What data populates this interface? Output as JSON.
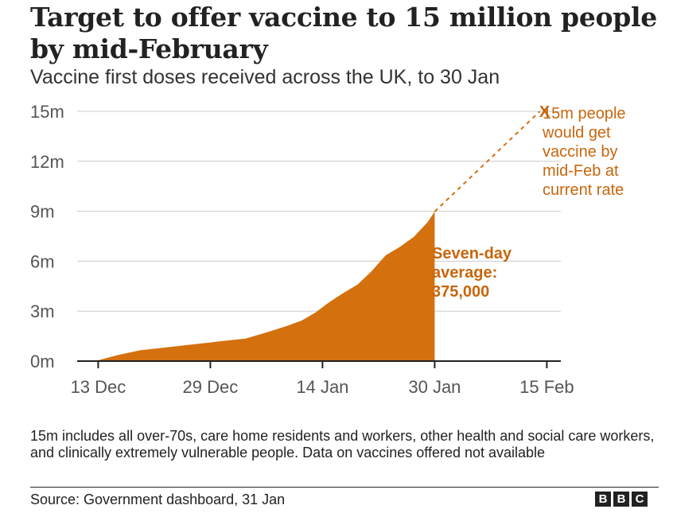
{
  "title": "Target to offer vaccine to 15 million people by mid-February",
  "subtitle": "Vaccine first doses received across the UK, to 30 Jan",
  "chart_data": {
    "type": "area",
    "title": "Target to offer vaccine to 15 million people by mid-February",
    "subtitle": "Vaccine first doses received across the UK, to 30 Jan",
    "xlabel": "",
    "ylabel": "",
    "x_unit": "days since 13 Dec",
    "xlim": [
      -3,
      66
    ],
    "ylim": [
      0,
      15
    ],
    "y_unit": "million people",
    "grid": true,
    "y_ticks": [
      {
        "value": 0,
        "label": "0m"
      },
      {
        "value": 3,
        "label": "3m"
      },
      {
        "value": 6,
        "label": "6m"
      },
      {
        "value": 9,
        "label": "9m"
      },
      {
        "value": 12,
        "label": "12m"
      },
      {
        "value": 15,
        "label": "15m"
      }
    ],
    "x_ticks": [
      {
        "value": 0,
        "label": "13 Dec"
      },
      {
        "value": 16,
        "label": "29 Dec"
      },
      {
        "value": 32,
        "label": "14 Jan"
      },
      {
        "value": 48,
        "label": "30 Jan"
      },
      {
        "value": 64,
        "label": "15 Feb"
      }
    ],
    "series": [
      {
        "name": "Vaccine first doses received",
        "color": "#d4700e",
        "x": [
          -1,
          0,
          3,
          6,
          9,
          12,
          15,
          18,
          21,
          24,
          27,
          29,
          31,
          33,
          35,
          37,
          39,
          41,
          43,
          45,
          47,
          48
        ],
        "y": [
          0,
          0.05,
          0.38,
          0.65,
          0.79,
          0.93,
          1.07,
          1.22,
          1.35,
          1.72,
          2.12,
          2.43,
          2.92,
          3.55,
          4.1,
          4.6,
          5.4,
          6.35,
          6.85,
          7.45,
          8.35,
          8.98
        ]
      },
      {
        "name": "Projection at current rate",
        "style": "dashed",
        "color": "#d4700e",
        "x": [
          48,
          63
        ],
        "y": [
          8.98,
          15
        ]
      }
    ],
    "annotations": [
      {
        "label": "Seven-day average:",
        "value": "375,000"
      },
      {
        "marker": "X",
        "label": "15m people would get vaccine by mid-Feb at current rate",
        "x": 63,
        "y": 15
      }
    ]
  },
  "annotations": {
    "average_line1": "Seven-day",
    "average_line2": "average:",
    "average_value": "375,000",
    "target_marker": "X",
    "target_lines": [
      "15m people",
      "would get",
      "vaccine by",
      "mid-Feb at",
      "current rate"
    ]
  },
  "note": "15m includes all over-70s, care home residents and workers, other health and social care workers, and clinically extremely vulnerable people. Data on vaccines offered not available",
  "source": "Source: Government dashboard, 31 Jan",
  "logo": [
    "B",
    "B",
    "C"
  ],
  "colors": {
    "accent": "#d4700e",
    "annotation": "#c8660c",
    "grid": "#cccccc",
    "axis": "#222222"
  }
}
